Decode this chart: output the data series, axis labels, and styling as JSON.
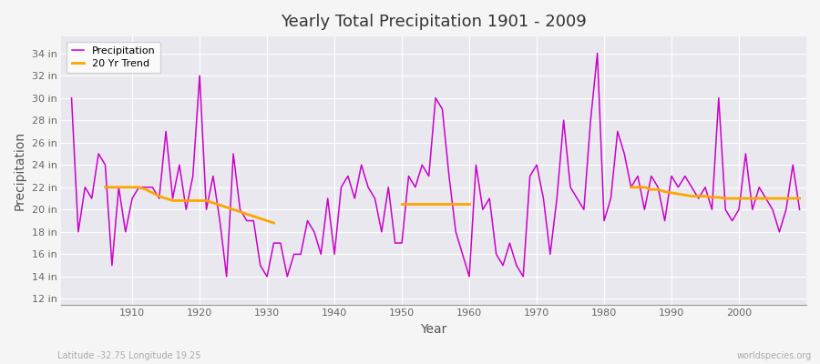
{
  "title": "Yearly Total Precipitation 1901 - 2009",
  "xlabel": "Year",
  "ylabel": "Precipitation",
  "background_color": "#f5f5f5",
  "plot_bg_color": "#e8e8ee",
  "precip_color": "#cc00cc",
  "trend_color": "#FFA500",
  "precip_label": "Precipitation",
  "trend_label": "20 Yr Trend",
  "ytick_labels": [
    "12 in",
    "14 in",
    "16 in",
    "18 in",
    "20 in",
    "22 in",
    "24 in",
    "26 in",
    "28 in",
    "30 in",
    "32 in",
    "34 in"
  ],
  "ytick_values": [
    12,
    14,
    16,
    18,
    20,
    22,
    24,
    26,
    28,
    30,
    32,
    34
  ],
  "ylim": [
    11.5,
    35.5
  ],
  "xlim": [
    1899.5,
    2010
  ],
  "years": [
    1901,
    1902,
    1903,
    1904,
    1905,
    1906,
    1907,
    1908,
    1909,
    1910,
    1911,
    1912,
    1913,
    1914,
    1915,
    1916,
    1917,
    1918,
    1919,
    1920,
    1921,
    1922,
    1923,
    1924,
    1925,
    1926,
    1927,
    1928,
    1929,
    1930,
    1931,
    1932,
    1933,
    1934,
    1935,
    1936,
    1937,
    1938,
    1939,
    1940,
    1941,
    1942,
    1943,
    1944,
    1945,
    1946,
    1947,
    1948,
    1949,
    1950,
    1951,
    1952,
    1953,
    1954,
    1955,
    1956,
    1957,
    1958,
    1959,
    1960,
    1961,
    1962,
    1963,
    1964,
    1965,
    1966,
    1967,
    1968,
    1969,
    1970,
    1971,
    1972,
    1973,
    1974,
    1975,
    1976,
    1977,
    1978,
    1979,
    1980,
    1981,
    1982,
    1983,
    1984,
    1985,
    1986,
    1987,
    1988,
    1989,
    1990,
    1991,
    1992,
    1993,
    1994,
    1995,
    1996,
    1997,
    1998,
    1999,
    2000,
    2001,
    2002,
    2003,
    2004,
    2005,
    2006,
    2007,
    2008,
    2009
  ],
  "precip": [
    30,
    18,
    22,
    21,
    25,
    24,
    15,
    22,
    18,
    21,
    22,
    22,
    22,
    21,
    27,
    21,
    24,
    20,
    23,
    32,
    20,
    23,
    19,
    14,
    25,
    20,
    19,
    19,
    15,
    14,
    17,
    17,
    14,
    16,
    16,
    19,
    18,
    16,
    21,
    16,
    22,
    23,
    21,
    24,
    22,
    21,
    18,
    22,
    17,
    17,
    23,
    22,
    24,
    23,
    30,
    29,
    23,
    18,
    16,
    14,
    24,
    20,
    21,
    16,
    15,
    17,
    15,
    14,
    23,
    24,
    21,
    16,
    21,
    28,
    22,
    21,
    20,
    28,
    34,
    19,
    21,
    27,
    25,
    22,
    23,
    20,
    23,
    22,
    19,
    23,
    22,
    23,
    22,
    21,
    22,
    20,
    30,
    20,
    19,
    20,
    25,
    20,
    22,
    21,
    20,
    18,
    20,
    24,
    20
  ],
  "trend_segments": [
    {
      "years": [
        1906,
        1907,
        1908,
        1909,
        1910,
        1911,
        1912,
        1913,
        1914,
        1915,
        1916,
        1917,
        1918,
        1919,
        1920,
        1921,
        1922,
        1923,
        1924,
        1925,
        1926,
        1927,
        1928,
        1929,
        1930,
        1931
      ],
      "values": [
        22.0,
        22.0,
        22.0,
        22.0,
        22.0,
        22.0,
        21.8,
        21.5,
        21.2,
        21.0,
        20.8,
        20.8,
        20.8,
        20.8,
        20.8,
        20.8,
        20.6,
        20.4,
        20.2,
        20.0,
        19.8,
        19.6,
        19.4,
        19.2,
        19.0,
        18.8
      ]
    },
    {
      "years": [
        1950,
        1951,
        1952,
        1953,
        1954,
        1955,
        1956,
        1957,
        1958,
        1959,
        1960
      ],
      "values": [
        20.5,
        20.5,
        20.5,
        20.5,
        20.5,
        20.5,
        20.5,
        20.5,
        20.5,
        20.5,
        20.5
      ]
    },
    {
      "years": [
        1984,
        1985,
        1986,
        1987,
        1988,
        1989,
        1990,
        1991,
        1992,
        1993,
        1994,
        1995,
        1996,
        1997,
        1998,
        1999,
        2000,
        2001,
        2002,
        2003,
        2004,
        2005,
        2006,
        2007,
        2008,
        2009
      ],
      "values": [
        22.0,
        22.0,
        22.0,
        21.8,
        21.8,
        21.6,
        21.5,
        21.4,
        21.3,
        21.2,
        21.2,
        21.2,
        21.1,
        21.1,
        21.0,
        21.0,
        21.0,
        21.0,
        21.0,
        21.0,
        21.0,
        21.0,
        21.0,
        21.0,
        21.0,
        21.0
      ]
    }
  ],
  "footer_left": "Latitude -32.75 Longitude 19.25",
  "footer_right": "worldspecies.org"
}
